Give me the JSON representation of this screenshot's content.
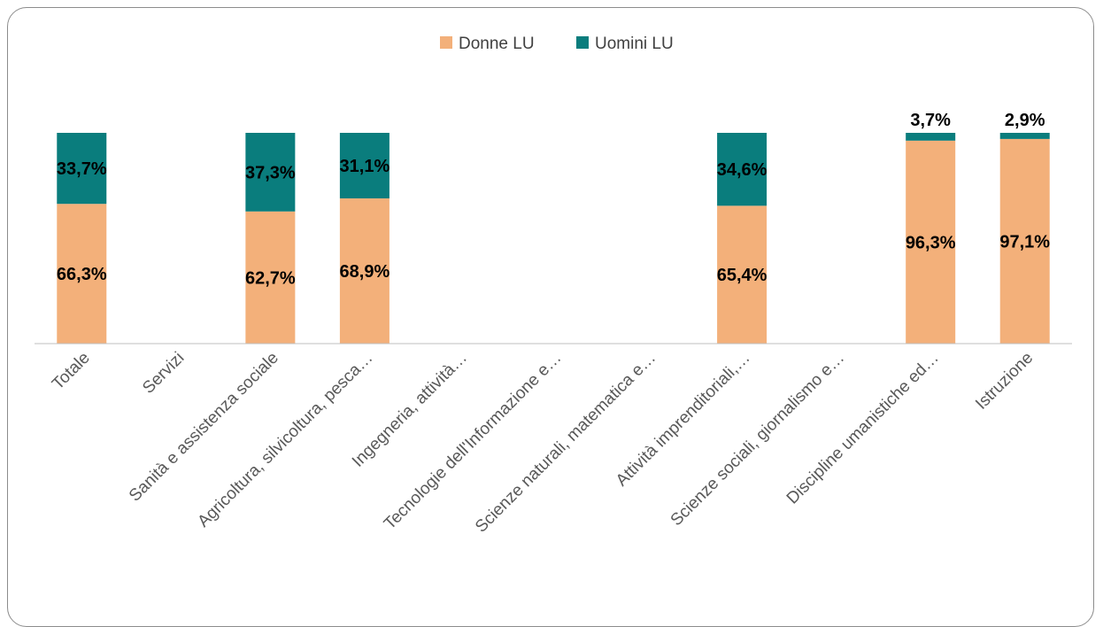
{
  "chart_data": {
    "type": "bar",
    "stacked": true,
    "orientation": "vertical",
    "categories": [
      "Totale",
      "Servizi",
      "Sanità e assistenza sociale",
      "Agricoltura, silvicoltura, pesca…",
      "Ingegneria, attività…",
      "Tecnologie dell'Informazione e…",
      "Scienze naturali, matematica e…",
      "Attività imprenditoriali,…",
      "Scienze sociali, giornalismo e…",
      "Discipline umanistiche ed…",
      "Istruzione"
    ],
    "series": [
      {
        "name": "Donne LU",
        "color": "#f3b07a",
        "values": [
          66.3,
          null,
          62.7,
          68.9,
          null,
          null,
          null,
          65.4,
          null,
          96.3,
          97.1
        ],
        "labels": [
          "66,3%",
          "",
          "62,7%",
          "68,9%",
          "",
          "",
          "",
          "65,4%",
          "",
          "96,3%",
          "97,1%"
        ]
      },
      {
        "name": "Uomini LU",
        "color": "#0a7d7d",
        "values": [
          33.7,
          null,
          37.3,
          31.1,
          null,
          null,
          null,
          34.6,
          null,
          3.7,
          2.9
        ],
        "labels": [
          "33,7%",
          "",
          "37,3%",
          "31,1%",
          "",
          "",
          "",
          "34,6%",
          "",
          "3,7%",
          "2,9%"
        ]
      }
    ],
    "ylim": [
      0,
      100
    ],
    "legend_position": "top",
    "grid": false
  }
}
